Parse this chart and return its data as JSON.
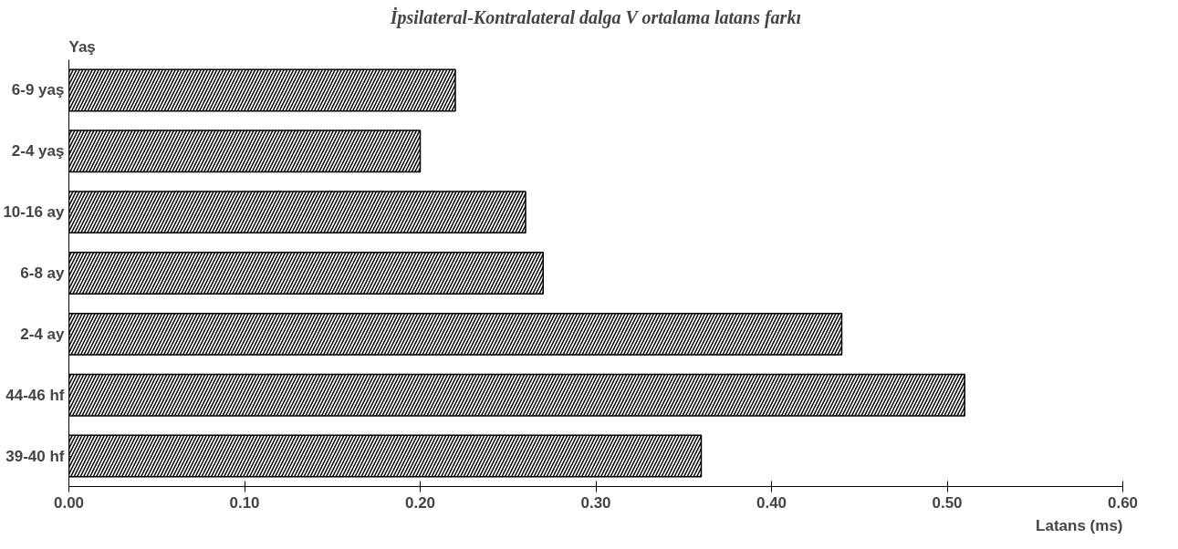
{
  "chart_data": {
    "type": "bar",
    "orientation": "horizontal",
    "title": "İpsilateral-Kontralateral dalga V ortalama latans farkı",
    "ylabel": "Yaş",
    "xlabel": "Latans (ms)",
    "categories": [
      "6-9 yaş",
      "2-4 yaş",
      "10-16 ay",
      "6-8 ay",
      "2-4 ay",
      "44-46 hf",
      "39-40 hf"
    ],
    "values": [
      0.22,
      0.2,
      0.26,
      0.27,
      0.44,
      0.51,
      0.36
    ],
    "color": "#000000",
    "xlim": [
      0,
      0.6
    ],
    "xticks": [
      {
        "value": 0,
        "label": "0.00"
      },
      {
        "value": 0.1,
        "label": "0.10"
      },
      {
        "value": 0.2,
        "label": "0.20"
      },
      {
        "value": 0.3,
        "label": "0.30"
      },
      {
        "value": 0.4,
        "label": "0.40"
      },
      {
        "value": 0.5,
        "label": "0.50"
      },
      {
        "value": 0.6,
        "label": "0.60"
      }
    ],
    "grid": false
  }
}
